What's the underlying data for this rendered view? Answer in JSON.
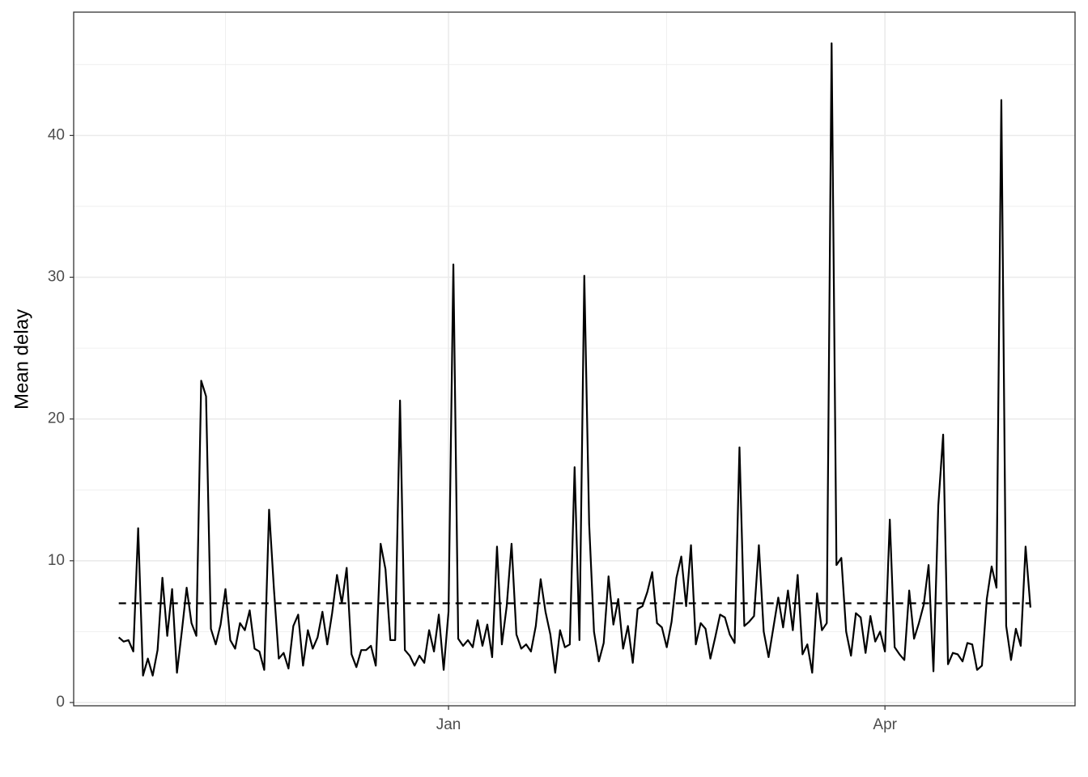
{
  "chart_data": {
    "type": "line",
    "y_label": "Mean delay",
    "x": [
      -68,
      -67,
      -66,
      -65,
      -64,
      -63,
      -62,
      -61,
      -60,
      -59,
      -58,
      -57,
      -56,
      -55,
      -54,
      -53,
      -52,
      -51,
      -50,
      -49,
      -48,
      -47,
      -46,
      -45,
      -44,
      -43,
      -42,
      -41,
      -40,
      -39,
      -38,
      -37,
      -36,
      -35,
      -34,
      -33,
      -32,
      -31,
      -30,
      -29,
      -28,
      -27,
      -26,
      -25,
      -24,
      -23,
      -22,
      -21,
      -20,
      -19,
      -18,
      -17,
      -16,
      -15,
      -14,
      -13,
      -12,
      -11,
      -10,
      -9,
      -8,
      -7,
      -6,
      -5,
      -4,
      -3,
      -2,
      -1,
      0,
      1,
      2,
      3,
      4,
      5,
      6,
      7,
      8,
      9,
      10,
      11,
      12,
      13,
      14,
      15,
      16,
      17,
      18,
      19,
      20,
      21,
      22,
      23,
      24,
      25,
      26,
      27,
      28,
      29,
      30,
      31,
      32,
      33,
      34,
      35,
      36,
      37,
      38,
      39,
      40,
      41,
      42,
      43,
      44,
      45,
      46,
      47,
      48,
      49,
      50,
      51,
      52,
      53,
      54,
      55,
      56,
      57,
      58,
      59,
      60,
      61,
      62,
      63,
      64,
      65,
      66,
      67,
      68,
      69,
      70,
      71,
      72,
      73,
      74,
      75,
      76,
      77,
      78,
      79,
      80,
      81,
      82,
      83,
      84,
      85,
      86,
      87,
      88,
      89,
      90,
      91,
      92,
      93,
      94,
      95,
      96,
      97,
      98,
      99,
      100,
      101,
      102,
      103,
      104,
      105,
      106,
      107,
      108,
      109,
      110,
      111,
      112,
      113,
      114,
      115,
      116,
      117,
      118,
      119,
      120
    ],
    "series": [
      {
        "color": "#000000",
        "values": [
          4.6,
          4.3,
          4.4,
          3.6,
          12.3,
          1.9,
          3.1,
          1.9,
          3.7,
          8.8,
          4.7,
          8.0,
          2.1,
          5.0,
          8.1,
          5.6,
          4.7,
          22.7,
          21.6,
          5.2,
          4.1,
          5.5,
          8.0,
          4.4,
          3.8,
          5.6,
          5.1,
          6.5,
          3.8,
          3.6,
          2.3,
          13.6,
          8.0,
          3.1,
          3.5,
          2.4,
          5.4,
          6.2,
          2.6,
          5.1,
          3.8,
          4.6,
          6.4,
          4.1,
          6.3,
          9.0,
          7.0,
          9.5,
          3.4,
          2.5,
          3.7,
          3.7,
          4.0,
          2.6,
          11.2,
          9.4,
          4.4,
          4.4,
          21.3,
          3.7,
          3.3,
          2.6,
          3.3,
          2.8,
          5.1,
          3.6,
          6.2,
          2.3,
          6.4,
          30.9,
          4.5,
          4.0,
          4.4,
          3.9,
          5.8,
          4.0,
          5.5,
          3.2,
          11.0,
          4.1,
          6.8,
          11.2,
          4.8,
          3.8,
          4.1,
          3.6,
          5.4,
          8.7,
          6.4,
          4.8,
          2.1,
          5.1,
          3.9,
          4.1,
          16.6,
          4.4,
          30.1,
          12.6,
          5.0,
          2.9,
          4.2,
          8.9,
          5.5,
          7.3,
          3.8,
          5.4,
          2.8,
          6.6,
          6.8,
          7.8,
          9.2,
          5.6,
          5.3,
          3.9,
          5.7,
          8.8,
          10.3,
          6.8,
          11.1,
          4.1,
          5.6,
          5.2,
          3.1,
          4.6,
          6.2,
          6.0,
          4.8,
          4.2,
          18.0,
          5.4,
          5.7,
          6.1,
          11.1,
          5.0,
          3.2,
          5.3,
          7.4,
          5.3,
          7.9,
          5.1,
          9.0,
          3.4,
          4.1,
          2.1,
          7.7,
          5.1,
          5.6,
          46.5,
          9.7,
          10.2,
          5.0,
          3.3,
          6.3,
          6.0,
          3.5,
          6.1,
          4.3,
          5.0,
          3.6,
          12.9,
          3.9,
          3.4,
          3.0,
          7.9,
          4.5,
          5.6,
          6.9,
          9.7,
          2.2,
          13.9,
          18.9,
          2.7,
          3.5,
          3.4,
          2.9,
          4.2,
          4.1,
          2.3,
          2.6,
          7.3,
          9.6,
          8.1,
          42.5,
          5.4,
          3.0,
          5.2,
          4.0,
          11.0,
          6.7
        ]
      }
    ],
    "hline": 7.0,
    "xlim": [
      -77.3,
      129.2
    ],
    "xticks": [
      {
        "value": 0,
        "label": "Jan"
      },
      {
        "value": 90,
        "label": "Apr"
      }
    ],
    "xminor": [
      -46,
      45
    ],
    "ylim": [
      -0.23,
      48.7
    ],
    "yticks": [
      0,
      10,
      20,
      30,
      40
    ],
    "yminor": [
      5,
      15,
      25,
      35,
      45
    ],
    "grid": true
  }
}
